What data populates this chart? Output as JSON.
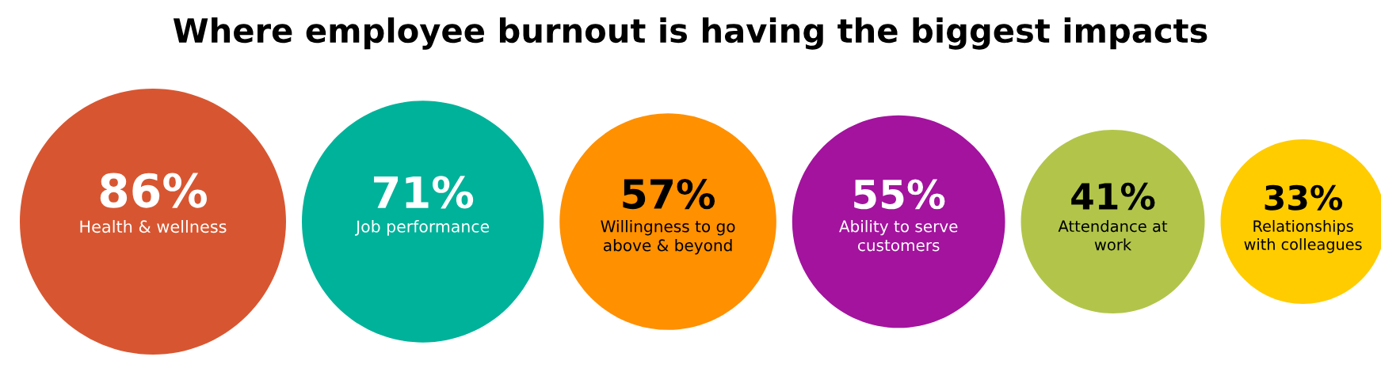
{
  "chart_data": {
    "type": "other",
    "title": "Where employee burnout is having the biggest impacts",
    "categories": [
      "Health & wellness",
      "Job performance",
      "Willingness to go\nabove & beyond",
      "Ability to serve\ncustomers",
      "Attendance at\nwork",
      "Relationships\nwith colleagues"
    ],
    "values": [
      86,
      71,
      57,
      55,
      41,
      33
    ],
    "value_labels": [
      "86%",
      "71%",
      "57%",
      "55%",
      "41%",
      "33%"
    ],
    "colors": [
      "#d75631",
      "#00b29a",
      "#ff9000",
      "#a3139e",
      "#b2c54a",
      "#ffcc00"
    ]
  }
}
